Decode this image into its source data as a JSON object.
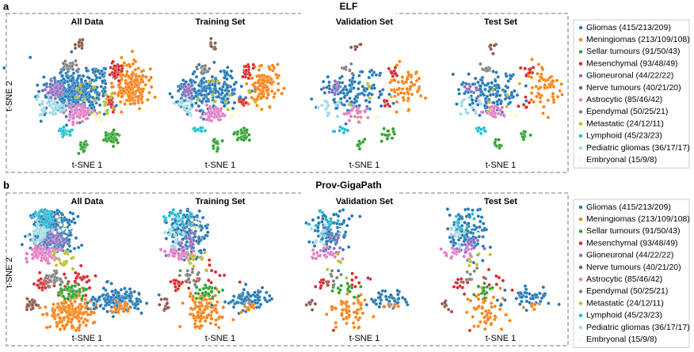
{
  "figure": {
    "panels": [
      {
        "label": "a",
        "title": "ELF",
        "subplots": [
          "All Data",
          "Training Set",
          "Validation Set",
          "Test Set"
        ],
        "x_label": "t-SNE 1",
        "y_label": "t-SNE 2",
        "legend": [
          {
            "name": "Gliomas (415/213/209)",
            "color": "#1f77b4"
          },
          {
            "name": "Meningiomas (213/109/108)",
            "color": "#ff7f0e"
          },
          {
            "name": "Sellar tumours (91/50/43)",
            "color": "#2ca02c"
          },
          {
            "name": "Mesenchymal (93/48/49)",
            "color": "#d62728"
          },
          {
            "name": "Glioneuronal (44/22/22)",
            "color": "#9467bd"
          },
          {
            "name": "Nerve tumours (40/21/20)",
            "color": "#8c564b"
          },
          {
            "name": "Astrocytic (85/46/42)",
            "color": "#e377c2"
          },
          {
            "name": "Ependymal (50/25/21)",
            "color": "#7f7f7f"
          },
          {
            "name": "Metastatic (24/12/11)",
            "color": "#bcbd22"
          },
          {
            "name": "Lymphoid (45/23/23)",
            "color": "#17becf"
          },
          {
            "name": "Pediatric gliomas (36/17/17)",
            "color": "#9edae5"
          },
          {
            "name": "Embryonal (15/9/8)",
            "color": "#fbfbd0"
          }
        ]
      },
      {
        "label": "b",
        "title": "Prov-GigaPath",
        "subplots": [
          "All Data",
          "Training Set",
          "Validation Set",
          "Test Set"
        ],
        "x_label": "t-SNE 1",
        "y_label": "t-SNE 2",
        "legend": [
          {
            "name": "Gliomas (415/213/209)",
            "color": "#1f77b4"
          },
          {
            "name": "Meningiomas (213/109/108)",
            "color": "#ff7f0e"
          },
          {
            "name": "Sellar tumours (91/50/43)",
            "color": "#2ca02c"
          },
          {
            "name": "Mesenchymal (93/48/49)",
            "color": "#d62728"
          },
          {
            "name": "Glioneuronal (44/22/22)",
            "color": "#9467bd"
          },
          {
            "name": "Nerve tumours (40/21/20)",
            "color": "#8c564b"
          },
          {
            "name": "Astrocytic (85/46/42)",
            "color": "#e377c2"
          },
          {
            "name": "Ependymal (50/25/21)",
            "color": "#7f7f7f"
          },
          {
            "name": "Metastatic (24/12/11)",
            "color": "#bcbd22"
          },
          {
            "name": "Lymphoid (45/23/23)",
            "color": "#17becf"
          },
          {
            "name": "Pediatric gliomas (36/17/17)",
            "color": "#9edae5"
          },
          {
            "name": "Embryonal (15/9/8)",
            "color": "#fbfbd0"
          }
        ]
      }
    ]
  }
}
